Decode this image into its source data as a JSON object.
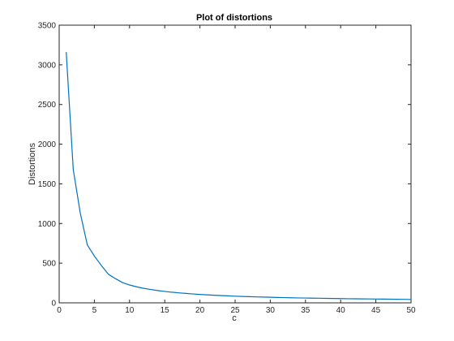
{
  "chart_data": {
    "type": "line",
    "title": "Plot of distortions",
    "xlabel": "c",
    "ylabel": "Distortions",
    "xlim": [
      0,
      50
    ],
    "ylim": [
      0,
      3500
    ],
    "xticks": [
      0,
      5,
      10,
      15,
      20,
      25,
      30,
      35,
      40,
      45,
      50
    ],
    "yticks": [
      0,
      500,
      1000,
      1500,
      2000,
      2500,
      3000,
      3500
    ],
    "grid": false,
    "legend": "none",
    "series": [
      {
        "color": "#0072bd",
        "x": [
          1,
          2,
          3,
          4,
          5,
          6,
          7,
          8,
          9,
          10,
          11,
          12,
          13,
          14,
          15,
          16,
          17,
          18,
          19,
          20,
          21,
          22,
          23,
          24,
          25,
          26,
          27,
          28,
          29,
          30,
          31,
          32,
          33,
          34,
          35,
          36,
          37,
          38,
          39,
          40,
          41,
          42,
          43,
          44,
          45,
          46,
          47,
          48,
          49,
          50
        ],
        "values": [
          3160,
          1680,
          1130,
          730,
          590,
          470,
          360,
          305,
          255,
          225,
          202,
          183,
          168,
          155,
          144,
          134,
          126,
          119,
          112,
          106,
          101,
          96,
          92,
          88,
          84,
          81,
          78,
          75,
          73,
          70,
          68,
          66,
          64,
          62,
          61,
          59,
          58,
          56,
          55,
          54,
          52,
          51,
          50,
          49,
          48,
          47,
          46,
          45,
          44,
          43
        ]
      }
    ]
  }
}
